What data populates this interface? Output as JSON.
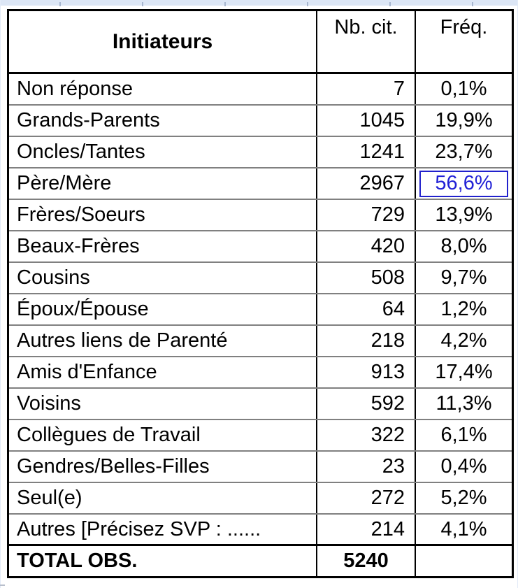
{
  "chart_data": {
    "type": "table",
    "title": "Initiateurs",
    "columns": [
      "Initiateurs",
      "Nb. cit.",
      "Fréq."
    ],
    "rows": [
      {
        "label": "Non réponse",
        "nb_cit": 7,
        "freq": "0,1%"
      },
      {
        "label": "Grands-Parents",
        "nb_cit": 1045,
        "freq": "19,9%"
      },
      {
        "label": "Oncles/Tantes",
        "nb_cit": 1241,
        "freq": "23,7%"
      },
      {
        "label": "Père/Mère",
        "nb_cit": 2967,
        "freq": "56,6%",
        "highlighted": true
      },
      {
        "label": "Frères/Soeurs",
        "nb_cit": 729,
        "freq": "13,9%"
      },
      {
        "label": "Beaux-Frères",
        "nb_cit": 420,
        "freq": "8,0%"
      },
      {
        "label": "Cousins",
        "nb_cit": 508,
        "freq": "9,7%"
      },
      {
        "label": "Époux/Épouse",
        "nb_cit": 64,
        "freq": "1,2%"
      },
      {
        "label": "Autres liens de Parenté",
        "nb_cit": 218,
        "freq": "4,2%"
      },
      {
        "label": "Amis d'Enfance",
        "nb_cit": 913,
        "freq": "17,4%"
      },
      {
        "label": "Voisins",
        "nb_cit": 592,
        "freq": "11,3%"
      },
      {
        "label": "Collègues de Travail",
        "nb_cit": 322,
        "freq": "6,1%"
      },
      {
        "label": "Gendres/Belles-Filles",
        "nb_cit": 23,
        "freq": "0,4%"
      },
      {
        "label": "Seul(e)",
        "nb_cit": 272,
        "freq": "5,2%"
      },
      {
        "label": "Autres [Précisez SVP : ......",
        "nb_cit": 214,
        "freq": "4,1%"
      }
    ],
    "total": {
      "label": "TOTAL OBS.",
      "nb_cit": 5240,
      "freq": ""
    },
    "highlighted_cell": {
      "row": "Père/Mère",
      "column": "Fréq.",
      "value": "56,6%"
    },
    "layout_hints": {
      "grid": "ruled table",
      "legend_position": "none"
    }
  },
  "colors": {
    "highlight_blue_border": "#2121cc",
    "highlight_blue_text": "#2121d6",
    "row_separator_gray": "#808080",
    "table_border_black": "#000000",
    "spreadsheet_strip_blue": "#dce6f5"
  }
}
